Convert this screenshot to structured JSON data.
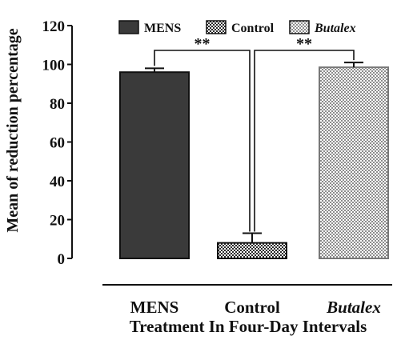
{
  "chart_data": {
    "type": "bar",
    "title": "",
    "xlabel": "Treatment In Four-Day Intervals",
    "ylabel": "Mean of reduction percentage",
    "categories": [
      "MENS",
      "Control",
      "Butalex"
    ],
    "category_italic": [
      false,
      false,
      true
    ],
    "values": [
      96,
      8,
      98.5
    ],
    "error": [
      2,
      5,
      2.5
    ],
    "ylim": [
      0,
      120
    ],
    "yticks": [
      "0",
      "20",
      "40",
      "60",
      "80",
      "100",
      "120"
    ],
    "grid": false,
    "legend_position": "top",
    "legend": [
      {
        "label": "MENS",
        "fill": "solid-dark",
        "italic": false
      },
      {
        "label": "Control",
        "fill": "checker",
        "italic": false
      },
      {
        "label": "Butalex",
        "fill": "fine-checker",
        "italic": true
      }
    ],
    "significance": [
      {
        "label": "**",
        "from": "MENS",
        "to": "Control"
      },
      {
        "label": "**",
        "from": "Control",
        "to": "Butalex"
      }
    ],
    "colors": {
      "mens_fill": "#3a3a3a",
      "control_fill": "#555555",
      "butalex_fill": "#9a9a9a",
      "stroke": "#111111"
    }
  }
}
